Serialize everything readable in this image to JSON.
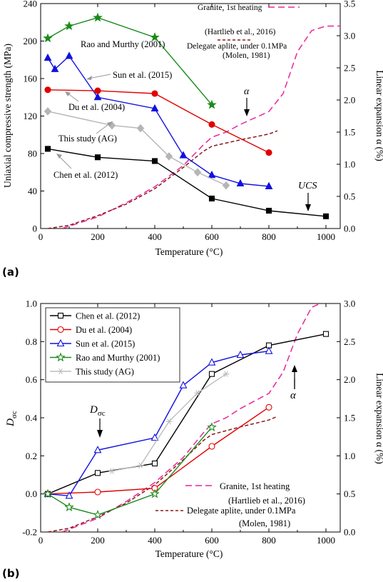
{
  "panels": [
    {
      "label": "(a)",
      "chart_data": {
        "type": "line",
        "xlabel": "Temperature (°C)",
        "ylabel": "Uniaxial compressive strength (MPa)",
        "y2label": "Linear expansion α (%)",
        "xlim": [
          0,
          1050
        ],
        "ylim": [
          0,
          240
        ],
        "y2lim": [
          0,
          3.5
        ],
        "xticks": [
          0,
          200,
          400,
          600,
          800,
          1000
        ],
        "yticks": [
          0,
          40,
          80,
          120,
          160,
          200,
          240
        ],
        "y2ticks": [
          0.0,
          0.5,
          1.0,
          1.5,
          2.0,
          2.5,
          3.0,
          3.5
        ],
        "legend": "none (series labelled by callouts)",
        "series": [
          {
            "name": "Rao and Murthy (2001)",
            "color": "#1a8a1a",
            "marker": "star-filled",
            "x": [
              25,
              100,
              200,
              400,
              600
            ],
            "y": [
              203,
              216,
              225,
              204,
              132
            ]
          },
          {
            "name": "Sun et al. (2015)",
            "color": "#1010e0",
            "marker": "triangle-filled",
            "x": [
              25,
              50,
              100,
              200,
              400,
              500,
              600,
              700,
              800
            ],
            "y": [
              182,
              170,
              184,
              140,
              128,
              78,
              57,
              48,
              45
            ]
          },
          {
            "name": "Du et al. (2004)",
            "color": "#e00000",
            "marker": "circle-filled",
            "x": [
              25,
              200,
              400,
              600,
              800
            ],
            "y": [
              148,
              147,
              144,
              111,
              81
            ]
          },
          {
            "name": "This study (AG)",
            "color": "#b5b5b5",
            "marker": "diamond-filled",
            "x": [
              25,
              250,
              350,
              450,
              550,
              650
            ],
            "y": [
              125,
              110,
              107,
              77,
              60,
              46
            ]
          },
          {
            "name": "Chen et al. (2012)",
            "color": "#000000",
            "marker": "square-filled",
            "x": [
              25,
              200,
              400,
              600,
              800,
              1000
            ],
            "y": [
              85,
              76,
              72,
              32,
              19,
              13
            ]
          }
        ],
        "expansion_curves": [
          {
            "name": "Granite, 1st heating",
            "source": "(Hartlieb et al., 2016)",
            "color": "#e8279a",
            "dash": "long",
            "x": [
              75,
              200,
              300,
              400,
              500,
              570,
              600,
              650,
              700,
              750,
              800,
              850,
              900,
              950,
              1000,
              1050
            ],
            "y": [
              0.0,
              0.18,
              0.4,
              0.65,
              0.98,
              1.3,
              1.42,
              1.5,
              1.62,
              1.72,
              1.82,
              2.1,
              2.75,
              3.08,
              3.15,
              3.15
            ]
          },
          {
            "name": "Delegate aplite, under 0.1MPa",
            "source": "(Molen, 1981)",
            "color": "#8b1a1a",
            "dash": "short",
            "x": [
              25,
              100,
              200,
              300,
              400,
              500,
              570,
              600,
              700,
              800,
              830
            ],
            "y": [
              0.0,
              0.05,
              0.2,
              0.38,
              0.62,
              0.95,
              1.2,
              1.28,
              1.38,
              1.47,
              1.52
            ]
          }
        ],
        "annotations": [
          {
            "text": "Rao and Murthy (2001)"
          },
          {
            "text": "Sun et al. (2015)"
          },
          {
            "text": "Du et al. (2004)"
          },
          {
            "text": "This study (AG)"
          },
          {
            "text": "Chen et al. (2012)"
          },
          {
            "text": "α"
          },
          {
            "text": "UCS"
          }
        ]
      }
    },
    {
      "label": "(b)",
      "chart_data": {
        "type": "line",
        "xlabel": "Temperature (°C)",
        "ylabel": "D_σc",
        "y2label": "Linear expansion α (%)",
        "xlim": [
          0,
          1050
        ],
        "ylim": [
          -0.2,
          1.0
        ],
        "y2lim": [
          0.0,
          3.0
        ],
        "xticks": [
          0,
          200,
          400,
          600,
          800,
          1000
        ],
        "yticks": [
          -0.2,
          0.0,
          0.2,
          0.4,
          0.6,
          0.8,
          1.0
        ],
        "y2ticks": [
          0.0,
          0.5,
          1.0,
          1.5,
          2.0,
          2.5,
          3.0
        ],
        "legend": "top-left",
        "series": [
          {
            "name": "Chen et al. (2012)",
            "color": "#000000",
            "marker": "square-open",
            "x": [
              25,
              200,
              400,
              600,
              800,
              1000
            ],
            "y": [
              0.0,
              0.11,
              0.16,
              0.63,
              0.78,
              0.84
            ]
          },
          {
            "name": "Du et al. (2004)",
            "color": "#e00000",
            "marker": "circle-open",
            "x": [
              25,
              200,
              400,
              600,
              800
            ],
            "y": [
              0.0,
              0.01,
              0.03,
              0.25,
              0.455
            ]
          },
          {
            "name": "Sun et al. (2015)",
            "color": "#1010e0",
            "marker": "triangle-open",
            "x": [
              25,
              100,
              200,
              400,
              500,
              600,
              700,
              800
            ],
            "y": [
              0.0,
              -0.01,
              0.23,
              0.295,
              0.57,
              0.69,
              0.73,
              0.75
            ]
          },
          {
            "name": "Rao and Murthy (2001)",
            "color": "#1a8a1a",
            "marker": "star-open",
            "x": [
              25,
              100,
              200,
              400,
              600
            ],
            "y": [
              0.0,
              -0.07,
              -0.11,
              0.0,
              0.35
            ]
          },
          {
            "name": "This study (AG)",
            "color": "#bdbdbd",
            "marker": "asterisk",
            "x": [
              250,
              350,
              450,
              550,
              650
            ],
            "y": [
              0.12,
              0.15,
              0.38,
              0.53,
              0.63
            ]
          }
        ],
        "expansion_curves": [
          {
            "name": "Granite, 1st heating",
            "source": "(Hartlieb et al., 2016)",
            "color": "#e8279a",
            "dash": "long",
            "x": [
              75,
              200,
              300,
              400,
              500,
              570,
              600,
              650,
              700,
              750,
              800,
              850,
              900,
              950,
              980
            ],
            "y": [
              0.0,
              0.18,
              0.4,
              0.65,
              0.98,
              1.3,
              1.42,
              1.5,
              1.62,
              1.72,
              1.82,
              2.1,
              2.6,
              2.95,
              3.0
            ]
          },
          {
            "name": "Delegate aplite, under 0.1MPa",
            "source": "(Molen, 1981)",
            "color": "#8b1a1a",
            "dash": "short",
            "x": [
              25,
              100,
              200,
              300,
              400,
              500,
              570,
              600,
              700,
              800,
              830
            ],
            "y": [
              0.0,
              0.05,
              0.2,
              0.38,
              0.62,
              0.95,
              1.2,
              1.28,
              1.38,
              1.47,
              1.52
            ]
          }
        ],
        "annotations": [
          {
            "text": "D_σc"
          },
          {
            "text": "α"
          }
        ]
      }
    }
  ]
}
